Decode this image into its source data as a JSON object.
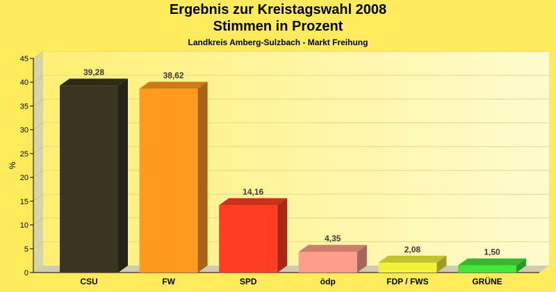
{
  "chart_data": {
    "type": "bar",
    "title": "Ergebnis zur Kreistagswahl 2008",
    "subtitle": "Stimmen in Prozent",
    "caption": "Landkreis Amberg-Sulzbach - Markt Freihung",
    "ylabel": "%",
    "xlabel": "",
    "ylim": [
      0,
      45
    ],
    "yticks": [
      0,
      5,
      10,
      15,
      20,
      25,
      30,
      35,
      40,
      45
    ],
    "grid": true,
    "categories": [
      "CSU",
      "FW",
      "SPD",
      "ödp",
      "FDP / FWS",
      "GRÜNE"
    ],
    "values": [
      39.28,
      38.62,
      14.16,
      4.35,
      2.08,
      1.5
    ],
    "value_labels": [
      "39,28",
      "38,62",
      "14,16",
      "4,35",
      "2,08",
      "1,50"
    ],
    "colors": [
      "#3b3520",
      "#ff9a1f",
      "#ff3d22",
      "#ff9c8a",
      "#f2f23a",
      "#44e63a"
    ]
  }
}
